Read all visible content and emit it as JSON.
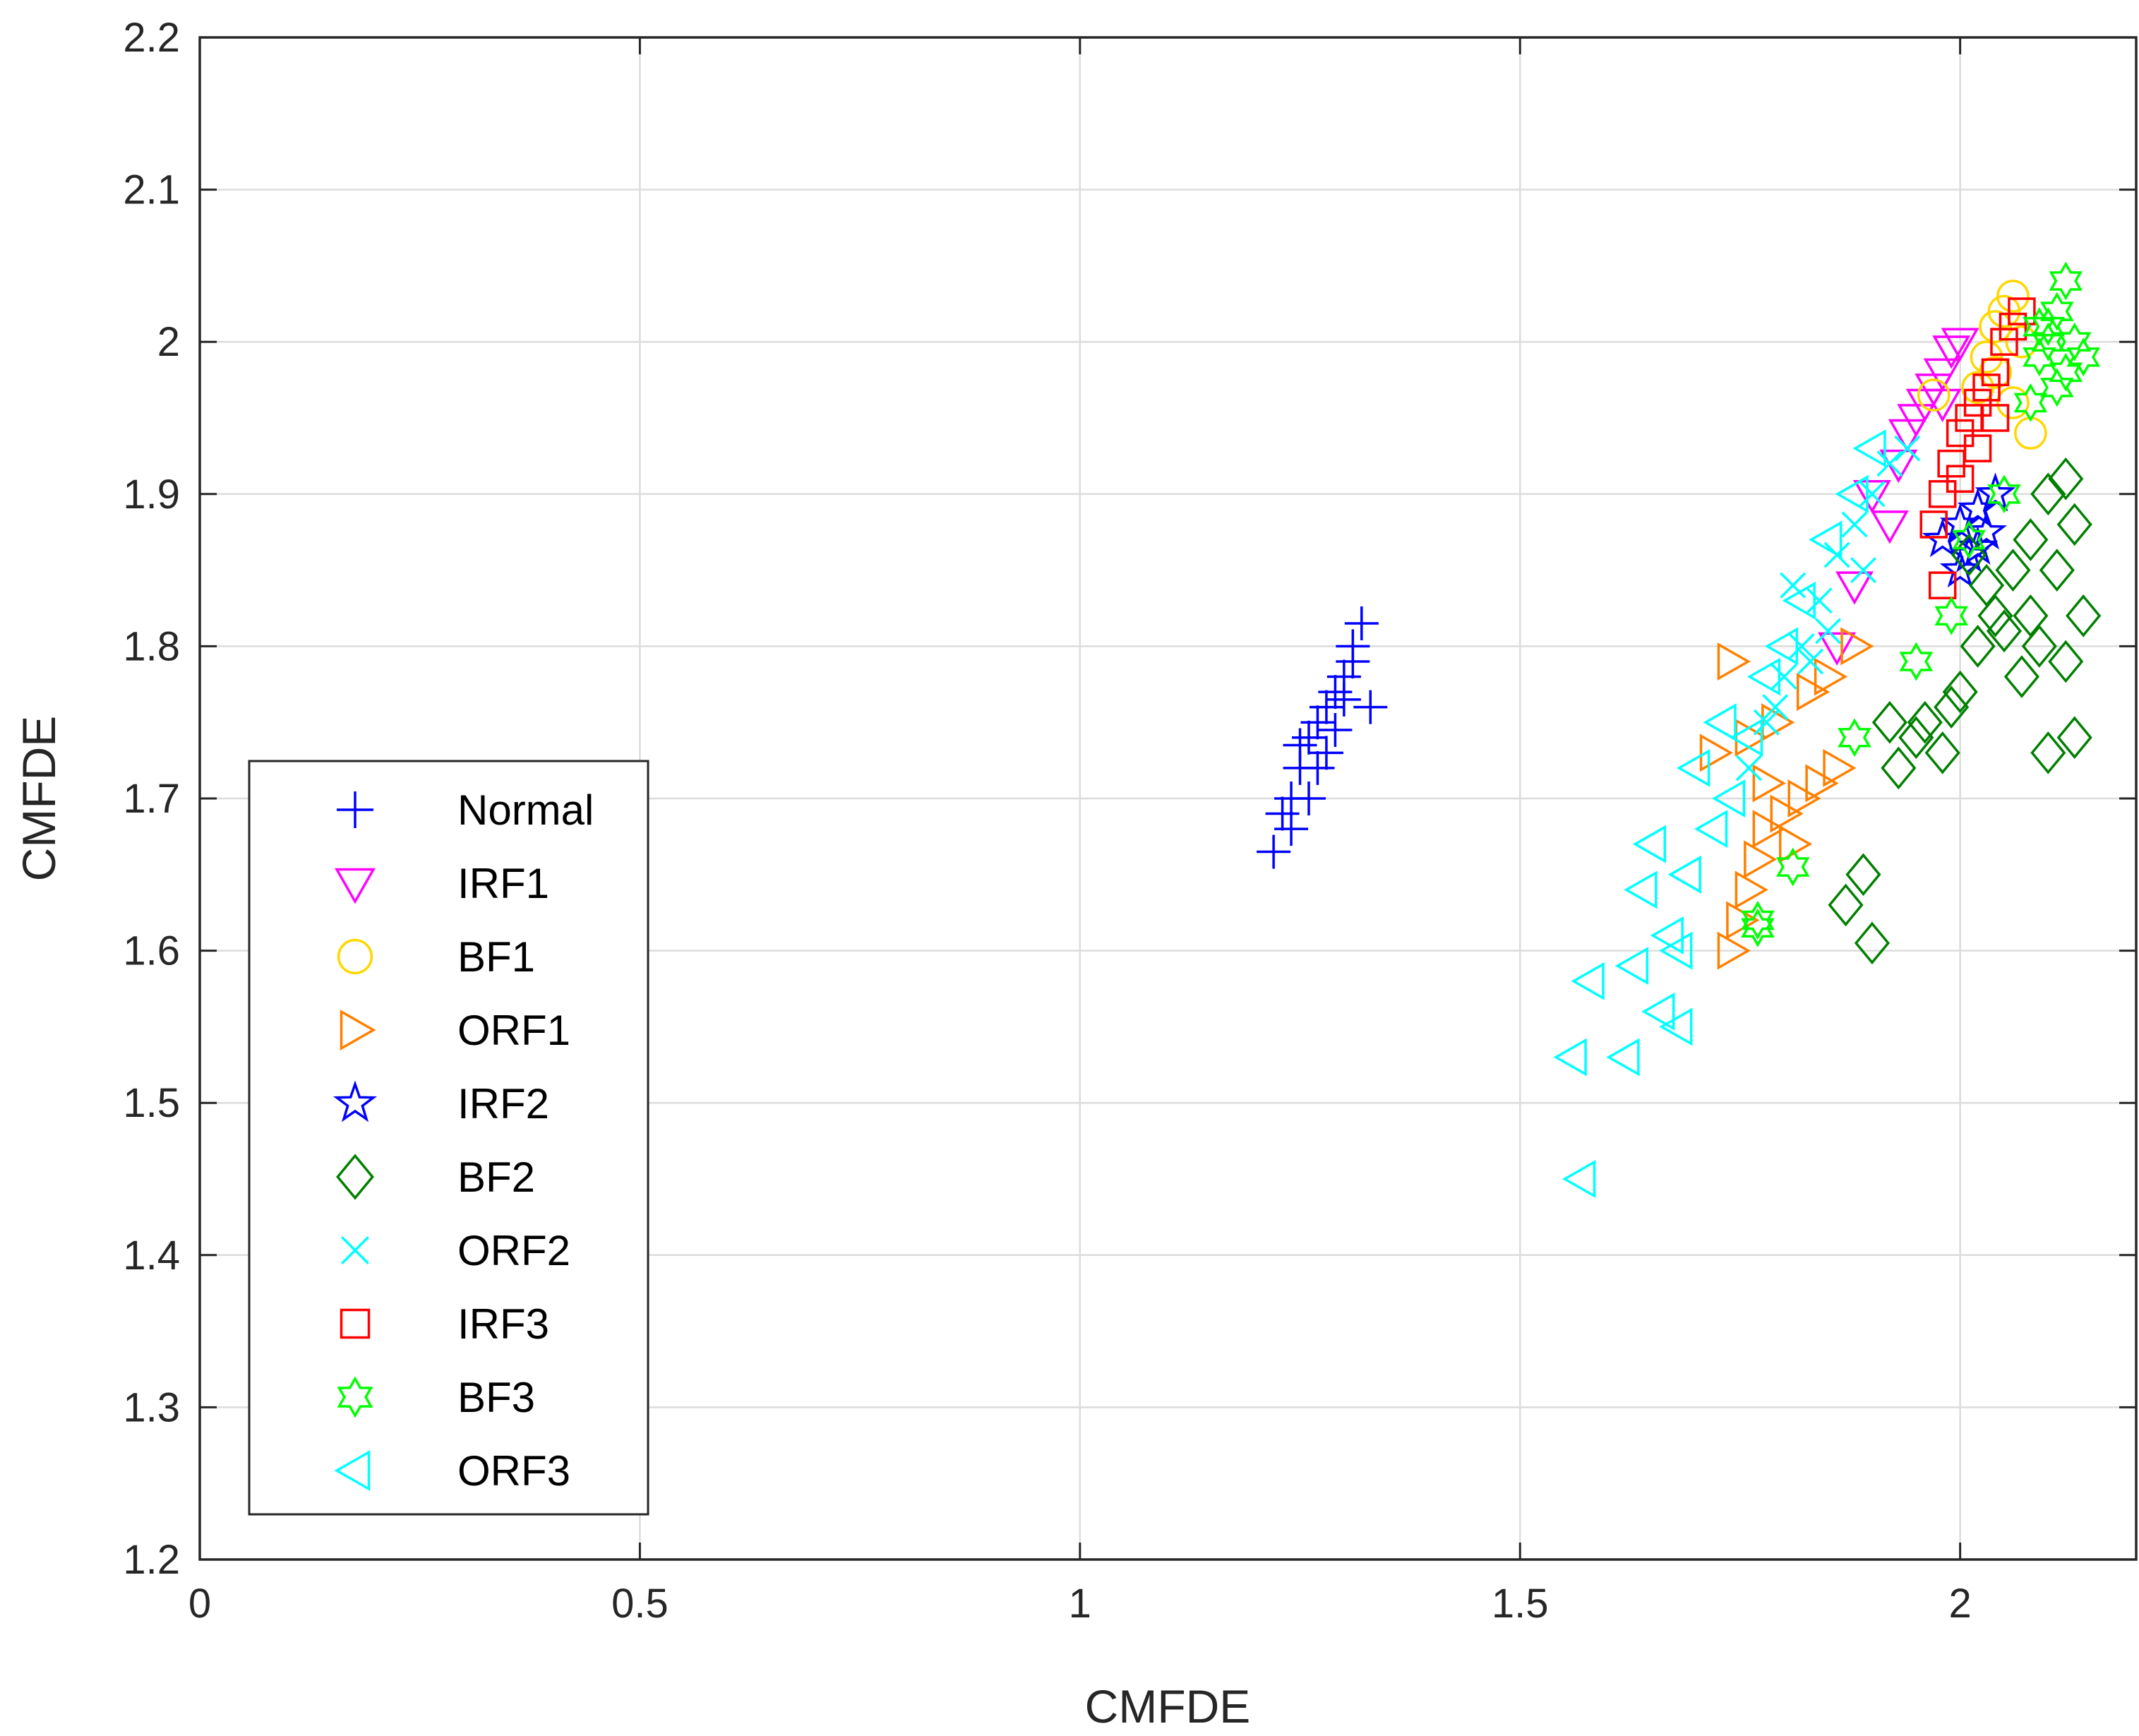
{
  "chart_data": {
    "type": "scatter",
    "title": "",
    "xlabel": "CMFDE",
    "ylabel": "CMFDE",
    "xlim": [
      0,
      2.2
    ],
    "ylim": [
      1.2,
      2.2
    ],
    "xticks": [
      0,
      0.5,
      1,
      1.5,
      2
    ],
    "xtick_labels": [
      "0",
      "0.5",
      "1",
      "1.5",
      "2"
    ],
    "yticks": [
      1.2,
      1.3,
      1.4,
      1.5,
      1.6,
      1.7,
      1.8,
      1.9,
      2.0,
      2.1,
      2.2
    ],
    "ytick_labels": [
      "1.2",
      "1.3",
      "1.4",
      "1.5",
      "1.6",
      "1.7",
      "1.8",
      "1.9",
      "2",
      "2.1",
      "2.2"
    ],
    "grid": true,
    "legend_position": "lower-left",
    "series": [
      {
        "name": "Normal",
        "marker": "plus",
        "color": "#0000ff",
        "x": [
          1.22,
          1.23,
          1.24,
          1.25,
          1.25,
          1.26,
          1.27,
          1.28,
          1.29,
          1.3,
          1.31,
          1.32,
          1.33,
          1.28,
          1.26,
          1.3,
          1.24,
          1.31,
          1.27,
          1.29
        ],
        "y": [
          1.665,
          1.69,
          1.7,
          1.72,
          1.735,
          1.74,
          1.75,
          1.76,
          1.77,
          1.78,
          1.8,
          1.815,
          1.76,
          1.73,
          1.7,
          1.765,
          1.68,
          1.79,
          1.72,
          1.745
        ]
      },
      {
        "name": "IRF1",
        "marker": "triangle-down",
        "color": "#ff00ff",
        "x": [
          1.9,
          1.93,
          1.95,
          1.96,
          1.97,
          1.98,
          1.99,
          2.0,
          1.94,
          1.92,
          1.88,
          1.86,
          1.98
        ],
        "y": [
          1.9,
          1.92,
          1.95,
          1.96,
          1.97,
          1.98,
          1.995,
          2.0,
          1.94,
          1.88,
          1.84,
          1.8,
          1.96
        ]
      },
      {
        "name": "BF1",
        "marker": "circle",
        "color": "#ffd700",
        "x": [
          2.02,
          2.03,
          2.04,
          2.05,
          2.06,
          2.07,
          2.08,
          2.04,
          2.06,
          1.97
        ],
        "y": [
          1.97,
          1.99,
          2.01,
          2.02,
          2.03,
          2.0,
          1.94,
          1.98,
          1.96,
          1.965
        ]
      },
      {
        "name": "ORF1",
        "marker": "triangle-right",
        "color": "#ff8000",
        "x": [
          1.74,
          1.75,
          1.76,
          1.77,
          1.78,
          1.8,
          1.82,
          1.84,
          1.86,
          1.74,
          1.72,
          1.76,
          1.79,
          1.83,
          1.85,
          1.88,
          1.81,
          1.78
        ],
        "y": [
          1.6,
          1.62,
          1.64,
          1.66,
          1.68,
          1.69,
          1.7,
          1.71,
          1.72,
          1.79,
          1.73,
          1.74,
          1.75,
          1.77,
          1.78,
          1.8,
          1.67,
          1.71
        ]
      },
      {
        "name": "IRF2",
        "marker": "star5",
        "color": "#0000ff",
        "x": [
          1.98,
          2.0,
          2.01,
          2.02,
          2.03,
          2.04,
          2.0,
          2.02
        ],
        "y": [
          1.87,
          1.88,
          1.86,
          1.89,
          1.875,
          1.9,
          1.85,
          1.865
        ]
      },
      {
        "name": "BF2",
        "marker": "diamond",
        "color": "#008000",
        "x": [
          1.87,
          1.89,
          1.9,
          1.92,
          1.95,
          1.98,
          2.0,
          2.02,
          2.04,
          2.06,
          2.08,
          2.1,
          2.12,
          2.13,
          2.14,
          2.11,
          2.09,
          2.07,
          2.05,
          2.03,
          2.01,
          1.99,
          1.96,
          1.93,
          2.1,
          2.13,
          2.08,
          2.12
        ],
        "y": [
          1.63,
          1.65,
          1.605,
          1.75,
          1.74,
          1.73,
          1.77,
          1.8,
          1.82,
          1.85,
          1.87,
          1.9,
          1.91,
          1.88,
          1.82,
          1.85,
          1.8,
          1.78,
          1.81,
          1.84,
          1.86,
          1.76,
          1.75,
          1.72,
          1.73,
          1.74,
          1.82,
          1.79
        ]
      },
      {
        "name": "ORF2",
        "marker": "x",
        "color": "#00ffff",
        "x": [
          1.76,
          1.78,
          1.8,
          1.82,
          1.84,
          1.86,
          1.88,
          1.9,
          1.92,
          1.94,
          1.81,
          1.85,
          1.89,
          1.79,
          1.83
        ],
        "y": [
          1.72,
          1.75,
          1.78,
          1.8,
          1.83,
          1.86,
          1.88,
          1.9,
          1.92,
          1.93,
          1.84,
          1.81,
          1.85,
          1.76,
          1.79
        ]
      },
      {
        "name": "IRF3",
        "marker": "square",
        "color": "#ff0000",
        "x": [
          1.97,
          1.98,
          1.99,
          2.0,
          2.01,
          2.02,
          2.03,
          2.04,
          2.05,
          2.06,
          2.07,
          2.02,
          2.04,
          1.98,
          2.0
        ],
        "y": [
          1.88,
          1.9,
          1.92,
          1.94,
          1.95,
          1.96,
          1.97,
          1.98,
          2.0,
          2.01,
          2.02,
          1.93,
          1.95,
          1.84,
          1.91
        ]
      },
      {
        "name": "BF3",
        "marker": "star6",
        "color": "#00ff00",
        "x": [
          1.77,
          1.81,
          1.88,
          1.95,
          1.99,
          2.01,
          2.05,
          2.08,
          2.09,
          2.1,
          2.11,
          2.12,
          2.13,
          2.14,
          2.11,
          2.09,
          2.12,
          2.1,
          1.77
        ],
        "y": [
          1.62,
          1.655,
          1.74,
          1.79,
          1.82,
          1.87,
          1.9,
          1.96,
          1.99,
          2.0,
          2.02,
          2.04,
          2.0,
          1.99,
          1.97,
          2.01,
          1.98,
          2.01,
          1.615
        ]
      },
      {
        "name": "ORF3",
        "marker": "triangle-left",
        "color": "#00ffff",
        "x": [
          1.56,
          1.57,
          1.58,
          1.62,
          1.63,
          1.64,
          1.65,
          1.67,
          1.68,
          1.7,
          1.72,
          1.74,
          1.76,
          1.78,
          1.8,
          1.82,
          1.85,
          1.88,
          1.9,
          1.66,
          1.69,
          1.73,
          1.68
        ],
        "y": [
          1.53,
          1.45,
          1.58,
          1.53,
          1.59,
          1.64,
          1.67,
          1.61,
          1.55,
          1.72,
          1.68,
          1.7,
          1.74,
          1.78,
          1.8,
          1.83,
          1.87,
          1.9,
          1.93,
          1.56,
          1.65,
          1.75,
          1.6
        ]
      }
    ]
  }
}
